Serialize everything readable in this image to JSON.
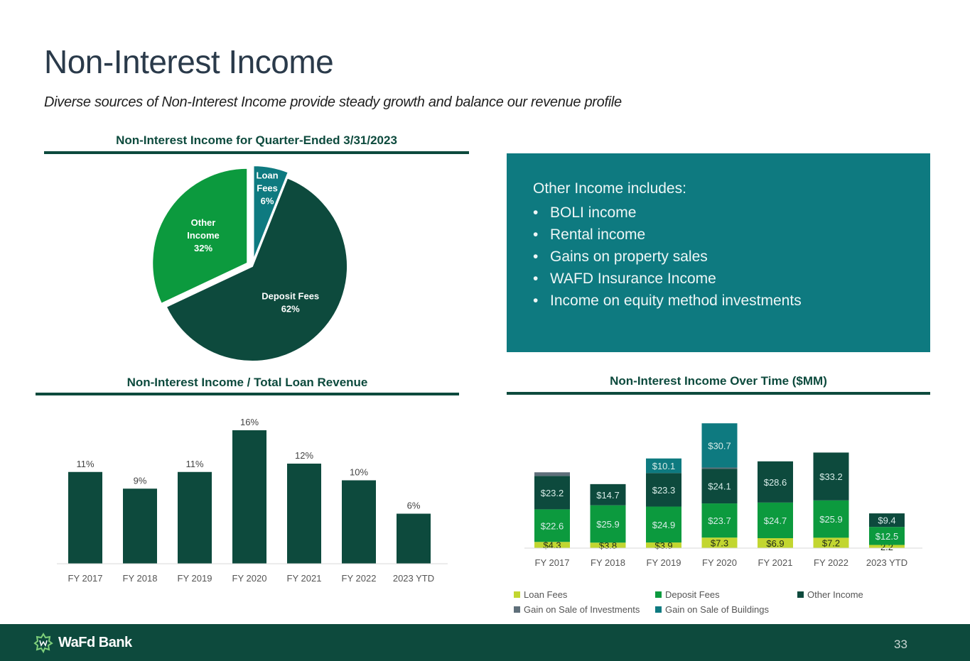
{
  "slide": {
    "title": "Non-Interest Income",
    "subtitle": "Diverse sources of Non-Interest Income provide steady growth and balance our revenue profile",
    "page_number": "33",
    "logo_text": "WaFd Bank"
  },
  "sections": {
    "pie_title": "Non-Interest Income for Quarter-Ended 3/31/2023",
    "ratio_title": "Non-Interest Income / Total Loan Revenue",
    "stack_title": "Non-Interest Income Over Time ($MM)"
  },
  "info_box": {
    "heading": "Other Income includes:",
    "items": [
      "BOLI income",
      "Rental income",
      "Gains on property sales",
      "WAFD Insurance Income",
      "Income on equity method investments"
    ],
    "bullet": "•"
  },
  "colors": {
    "dark_green": "#0d4a3d",
    "teal": "#0e7a80",
    "green": "#0c9a3e",
    "lime": "#c2d630",
    "gray": "#5f6f7a"
  },
  "chart_data": [
    {
      "type": "pie",
      "slices": [
        {
          "label": "Loan\nFees",
          "display": "Loan Fees",
          "value": 6,
          "value_label": "6%",
          "color": "#0e7a80",
          "exploded": true
        },
        {
          "label": "Deposit Fees",
          "display": "Deposit Fees",
          "value": 62,
          "value_label": "62%",
          "color": "#0d4a3d",
          "exploded": false
        },
        {
          "label": "Other\nIncome",
          "display": "Other Income",
          "value": 32,
          "value_label": "32%",
          "color": "#0c9a3e",
          "exploded": true
        }
      ]
    },
    {
      "type": "bar",
      "categories": [
        "FY 2017",
        "FY 2018",
        "FY 2019",
        "FY 2020",
        "FY 2021",
        "FY 2022",
        "2023 YTD"
      ],
      "values": [
        11,
        9,
        11,
        16,
        12,
        10,
        6
      ],
      "labels": [
        "11%",
        "9%",
        "11%",
        "16%",
        "12%",
        "10%",
        "6%"
      ],
      "ylim": [
        0,
        16
      ],
      "color": "#0d4a3d"
    },
    {
      "type": "bar",
      "stacked": true,
      "categories": [
        "FY 2017",
        "FY 2018",
        "FY 2019",
        "FY 2020",
        "FY 2021",
        "FY 2022",
        "2023 YTD"
      ],
      "series": [
        {
          "name": "Loan Fees",
          "color": "#c2d630",
          "values": [
            4.3,
            3.8,
            3.9,
            7.3,
            6.9,
            7.2,
            2.2
          ],
          "labels": [
            "$4.3",
            "$3.8",
            "$3.9",
            "$7.3",
            "$6.9",
            "$7.2",
            "2.2"
          ]
        },
        {
          "name": "Deposit Fees",
          "color": "#0c9a3e",
          "values": [
            22.6,
            25.9,
            24.9,
            23.7,
            24.7,
            25.9,
            12.5
          ],
          "labels": [
            "$22.6",
            "$25.9",
            "$24.9",
            "$23.7",
            "$24.7",
            "$25.9",
            "$12.5"
          ]
        },
        {
          "name": "Other Income",
          "color": "#0d4a3d",
          "values": [
            23.2,
            14.7,
            23.3,
            24.1,
            28.6,
            33.2,
            9.4
          ],
          "labels": [
            "$23.2",
            "$14.7",
            "$23.3",
            "$24.1",
            "$28.6",
            "$33.2",
            "$9.4"
          ]
        },
        {
          "name": "Gain on Sale of Investments",
          "color": "#5f6f7a",
          "values": [
            2.5,
            0,
            0,
            0.8,
            0,
            0,
            0
          ],
          "labels": [
            "",
            "",
            "",
            "",
            "",
            "",
            ""
          ]
        },
        {
          "name": "Gain on Sale of Buildings",
          "color": "#0e7a80",
          "values": [
            0,
            0,
            10.1,
            30.7,
            0,
            0,
            0
          ],
          "labels": [
            "",
            "",
            "$10.1",
            "$30.7",
            "",
            "",
            ""
          ]
        }
      ],
      "legend_position": "bottom"
    }
  ]
}
